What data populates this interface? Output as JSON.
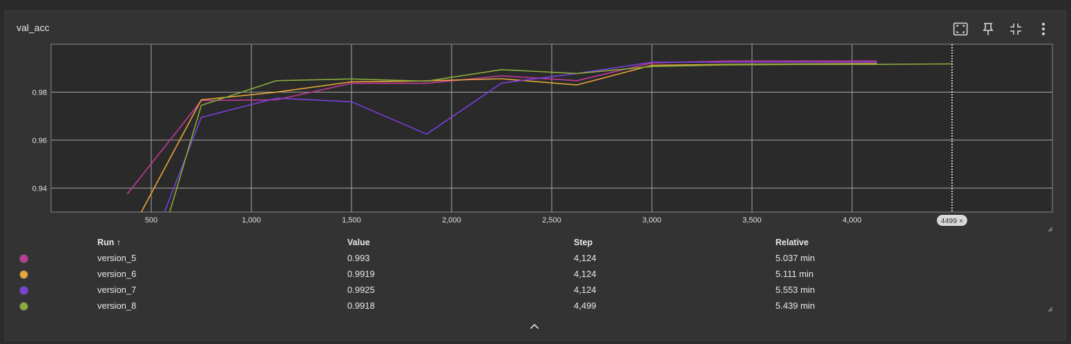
{
  "card": {
    "title": "val_acc"
  },
  "toolbar": {
    "icons": [
      "fit-to-screen-icon",
      "pin-icon",
      "collapse-icon",
      "more-vert-icon"
    ]
  },
  "chart_data": {
    "type": "line",
    "title": "val_acc",
    "xlabel": "",
    "ylabel": "",
    "xlim": [
      0,
      5000
    ],
    "ylim": [
      0.93,
      1.0
    ],
    "x_ticks": [
      500,
      1000,
      1500,
      2000,
      2500,
      3000,
      3500,
      4000
    ],
    "x_tick_labels": [
      "500",
      "1,000",
      "1,500",
      "2,000",
      "2,500",
      "3,000",
      "3,500",
      "4,000"
    ],
    "y_ticks": [
      0.94,
      0.96,
      0.98
    ],
    "y_tick_labels": [
      "0.94",
      "0.96",
      "0.98"
    ],
    "grid": true,
    "cursor": {
      "step": 4499,
      "label": "4499 ×"
    },
    "series": [
      {
        "name": "version_5",
        "color": "#c2399b",
        "points": [
          [
            380,
            0.9375
          ],
          [
            750,
            0.9765
          ],
          [
            1125,
            0.9768
          ],
          [
            1500,
            0.9837
          ],
          [
            1875,
            0.9837
          ],
          [
            2250,
            0.9868
          ],
          [
            2625,
            0.9848
          ],
          [
            3000,
            0.9922
          ],
          [
            3375,
            0.993
          ],
          [
            3750,
            0.993
          ],
          [
            4124,
            0.993
          ]
        ]
      },
      {
        "name": "version_6",
        "color": "#e8a838",
        "points": [
          [
            380,
            0.919
          ],
          [
            750,
            0.9768
          ],
          [
            1125,
            0.98
          ],
          [
            1500,
            0.9843
          ],
          [
            1875,
            0.9847
          ],
          [
            2250,
            0.9856
          ],
          [
            2625,
            0.983
          ],
          [
            3000,
            0.9912
          ],
          [
            3375,
            0.9916
          ],
          [
            3750,
            0.9918
          ],
          [
            4124,
            0.9919
          ]
        ]
      },
      {
        "name": "version_7",
        "color": "#7b3fe0",
        "points": [
          [
            380,
            0.89
          ],
          [
            750,
            0.9695
          ],
          [
            1125,
            0.9775
          ],
          [
            1500,
            0.976
          ],
          [
            1875,
            0.9625
          ],
          [
            2250,
            0.9838
          ],
          [
            2625,
            0.9878
          ],
          [
            3000,
            0.9925
          ],
          [
            3375,
            0.9925
          ],
          [
            3750,
            0.9925
          ],
          [
            4124,
            0.9925
          ]
        ]
      },
      {
        "name": "version_8",
        "color": "#8bac3c",
        "points": [
          [
            380,
            0.87
          ],
          [
            750,
            0.9745
          ],
          [
            1125,
            0.9848
          ],
          [
            1500,
            0.9855
          ],
          [
            1875,
            0.9846
          ],
          [
            2250,
            0.9894
          ],
          [
            2625,
            0.9878
          ],
          [
            3000,
            0.9907
          ],
          [
            3375,
            0.9914
          ],
          [
            3750,
            0.9916
          ],
          [
            4124,
            0.9916
          ],
          [
            4499,
            0.9918
          ]
        ]
      }
    ]
  },
  "table": {
    "headers": {
      "run": "Run ↑",
      "value": "Value",
      "step": "Step",
      "relative": "Relative"
    },
    "rows": [
      {
        "run": "version_5",
        "value": "0.993",
        "step": "4,124",
        "relative": "5.037 min",
        "color": "#c2399b"
      },
      {
        "run": "version_6",
        "value": "0.9919",
        "step": "4,124",
        "relative": "5.111 min",
        "color": "#e8a838"
      },
      {
        "run": "version_7",
        "value": "0.9925",
        "step": "4,124",
        "relative": "5.553 min",
        "color": "#7b3fe0"
      },
      {
        "run": "version_8",
        "value": "0.9918",
        "step": "4,499",
        "relative": "5.439 min",
        "color": "#8bac3c"
      }
    ]
  }
}
